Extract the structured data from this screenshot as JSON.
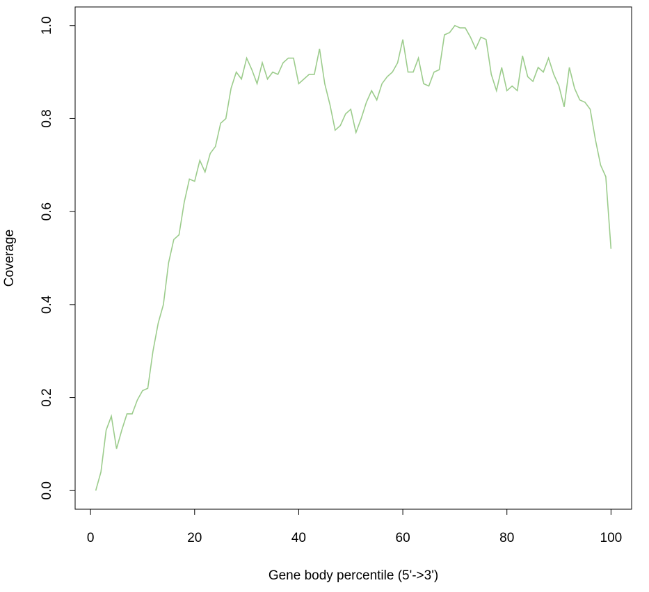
{
  "chart_data": {
    "type": "line",
    "xlabel": "Gene body percentile (5'->3')",
    "ylabel": "Coverage",
    "x": [
      1,
      2,
      3,
      4,
      5,
      6,
      7,
      8,
      9,
      10,
      11,
      12,
      13,
      14,
      15,
      16,
      17,
      18,
      19,
      20,
      21,
      22,
      23,
      24,
      25,
      26,
      27,
      28,
      29,
      30,
      31,
      32,
      33,
      34,
      35,
      36,
      37,
      38,
      39,
      40,
      41,
      42,
      43,
      44,
      45,
      46,
      47,
      48,
      49,
      50,
      51,
      52,
      53,
      54,
      55,
      56,
      57,
      58,
      59,
      60,
      61,
      62,
      63,
      64,
      65,
      66,
      67,
      68,
      69,
      70,
      71,
      72,
      73,
      74,
      75,
      76,
      77,
      78,
      79,
      80,
      81,
      82,
      83,
      84,
      85,
      86,
      87,
      88,
      89,
      90,
      91,
      92,
      93,
      94,
      95,
      96,
      97,
      98,
      99,
      100
    ],
    "values": [
      0.0,
      0.04,
      0.13,
      0.16,
      0.09,
      0.13,
      0.165,
      0.165,
      0.195,
      0.215,
      0.22,
      0.3,
      0.36,
      0.4,
      0.49,
      0.54,
      0.55,
      0.62,
      0.67,
      0.665,
      0.71,
      0.685,
      0.725,
      0.74,
      0.79,
      0.8,
      0.865,
      0.9,
      0.885,
      0.93,
      0.905,
      0.875,
      0.92,
      0.885,
      0.9,
      0.895,
      0.92,
      0.93,
      0.93,
      0.875,
      0.885,
      0.895,
      0.895,
      0.95,
      0.875,
      0.83,
      0.775,
      0.785,
      0.81,
      0.82,
      0.77,
      0.8,
      0.835,
      0.86,
      0.84,
      0.875,
      0.89,
      0.9,
      0.92,
      0.97,
      0.9,
      0.9,
      0.93,
      0.875,
      0.87,
      0.9,
      0.905,
      0.98,
      0.985,
      1.0,
      0.995,
      0.995,
      0.975,
      0.95,
      0.975,
      0.97,
      0.895,
      0.86,
      0.91,
      0.86,
      0.87,
      0.86,
      0.935,
      0.89,
      0.88,
      0.91,
      0.9,
      0.93,
      0.895,
      0.87,
      0.825,
      0.91,
      0.865,
      0.84,
      0.835,
      0.82,
      0.755,
      0.7,
      0.675,
      0.52
    ],
    "color": "#9ccc8c",
    "xlim": [
      -2.96,
      103.96
    ],
    "ylim": [
      -0.04,
      1.04
    ],
    "xticks": [
      0,
      20,
      40,
      60,
      80,
      100
    ],
    "yticks": [
      {
        "value": 0,
        "label": "0.0"
      },
      0.2,
      0.4,
      0.6,
      0.8,
      {
        "value": 1,
        "label": "1.0"
      }
    ]
  }
}
